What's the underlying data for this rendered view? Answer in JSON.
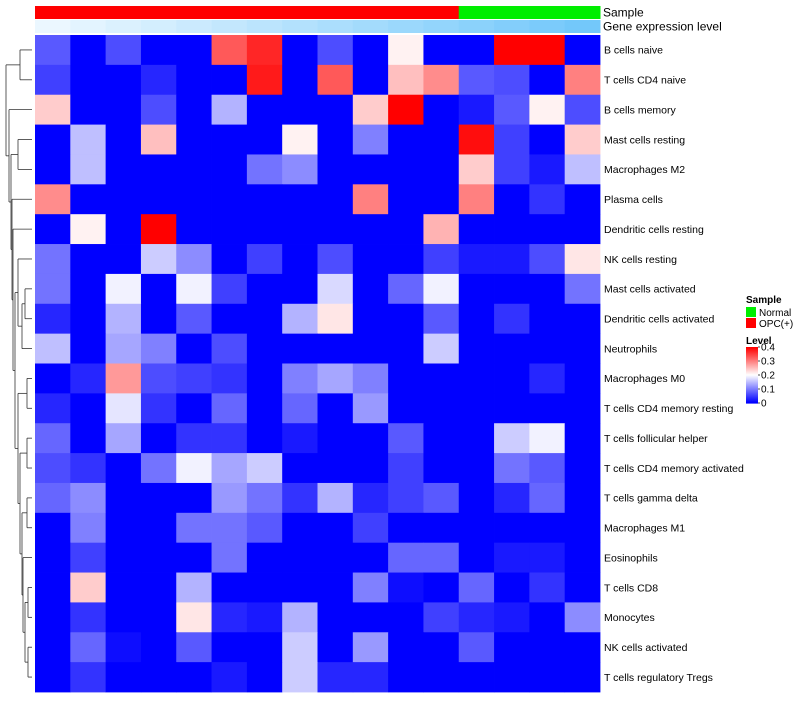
{
  "colors": {
    "normal": "#00ee00",
    "opc": "#ff0000",
    "scale_low": "#0000ff",
    "scale_mid": "#ffffff",
    "scale_high": "#ff0000"
  },
  "chart_data": {
    "type": "heatmap",
    "title": "",
    "value_range": [
      0,
      0.4
    ],
    "rows": [
      "B cells naive",
      "T cells CD4 naive",
      "B cells memory",
      "Mast cells resting",
      "Macrophages M2",
      "Plasma cells",
      "Dendritic cells resting",
      "NK cells resting",
      "Mast cells activated",
      "Dendritic cells activated",
      "Neutrophils",
      "Macrophages M0",
      "T cells CD4 memory resting",
      "T cells follicular helper",
      "T cells CD4 memory activated",
      "T cells gamma delta",
      "Macrophages M1",
      "Eosinophils",
      "T cells CD8",
      "Monocytes",
      "NK cells activated",
      "T cells regulatory  Tregs"
    ],
    "column_annotations": {
      "sample_label": "Sample",
      "expression_label": "Gene expression level",
      "sample_groups": [
        "OPC(+)",
        "OPC(+)",
        "OPC(+)",
        "OPC(+)",
        "OPC(+)",
        "OPC(+)",
        "OPC(+)",
        "OPC(+)",
        "OPC(+)",
        "OPC(+)",
        "OPC(+)",
        "OPC(+)",
        "Normal",
        "Normal",
        "Normal",
        "Normal"
      ],
      "expression_level": [
        0.02,
        0.08,
        0.14,
        0.2,
        0.26,
        0.32,
        0.38,
        0.44,
        0.5,
        0.56,
        0.62,
        0.68,
        0.74,
        0.8,
        0.86,
        0.92
      ]
    },
    "values": [
      [
        0.07,
        0,
        0.06,
        0,
        0,
        0.33,
        0.37,
        0,
        0.06,
        0,
        0.21,
        0,
        0,
        0.4,
        0.4,
        0
      ],
      [
        0.05,
        0,
        0,
        0.03,
        0,
        0,
        0.38,
        0,
        0.33,
        0,
        0.25,
        0.29,
        0.07,
        0.06,
        0,
        0.3
      ],
      [
        0.24,
        0,
        0,
        0.06,
        0,
        0.14,
        0,
        0,
        0,
        0.24,
        0.4,
        0,
        0.02,
        0.07,
        0.21,
        0.06
      ],
      [
        0,
        0.15,
        0,
        0.25,
        0,
        0,
        0,
        0.21,
        0,
        0.1,
        0,
        0,
        0.39,
        0.05,
        0,
        0.24
      ],
      [
        0,
        0.15,
        0,
        0,
        0,
        0,
        0.09,
        0.11,
        0,
        0,
        0,
        0,
        0.24,
        0.05,
        0.02,
        0.15
      ],
      [
        0.29,
        0,
        0,
        0,
        0,
        0,
        0,
        0,
        0,
        0.3,
        0,
        0,
        0.3,
        0,
        0.04,
        0
      ],
      [
        0,
        0.21,
        0,
        0.4,
        0,
        0,
        0,
        0,
        0,
        0,
        0,
        0.26,
        0,
        0,
        0,
        0
      ],
      [
        0.09,
        0,
        0,
        0.16,
        0.11,
        0,
        0.05,
        0,
        0.06,
        0,
        0,
        0.05,
        0.02,
        0.02,
        0.06,
        0.22
      ],
      [
        0.09,
        0,
        0.19,
        0,
        0.19,
        0.05,
        0,
        0,
        0.17,
        0,
        0.08,
        0.19,
        0,
        0,
        0,
        0.09
      ],
      [
        0.03,
        0,
        0.14,
        0,
        0.07,
        0,
        0,
        0.14,
        0.22,
        0,
        0,
        0.07,
        0,
        0.04,
        0,
        0
      ],
      [
        0.15,
        0,
        0.13,
        0.1,
        0,
        0.06,
        0,
        0,
        0,
        0,
        0,
        0.16,
        0,
        0,
        0,
        0
      ],
      [
        0,
        0.03,
        0.28,
        0.06,
        0.05,
        0.04,
        0,
        0.1,
        0.13,
        0.1,
        0,
        0,
        0,
        0,
        0.03,
        0
      ],
      [
        0.03,
        0,
        0.18,
        0.04,
        0,
        0.08,
        0,
        0.08,
        0,
        0.12,
        0,
        0,
        0,
        0,
        0,
        0
      ],
      [
        0.08,
        0,
        0.13,
        0,
        0.04,
        0.04,
        0,
        0.02,
        0,
        0,
        0.07,
        0,
        0,
        0.16,
        0.19,
        0
      ],
      [
        0.06,
        0.04,
        0,
        0.09,
        0.19,
        0.13,
        0.16,
        0,
        0,
        0,
        0.05,
        0,
        0,
        0.09,
        0.07,
        0
      ],
      [
        0.08,
        0.11,
        0,
        0,
        0,
        0.12,
        0.09,
        0.04,
        0.14,
        0.03,
        0.05,
        0.07,
        0,
        0.03,
        0.08,
        0
      ],
      [
        0,
        0.1,
        0,
        0,
        0.09,
        0.09,
        0.07,
        0,
        0,
        0.05,
        0,
        0,
        0,
        0,
        0,
        0
      ],
      [
        0,
        0.05,
        0,
        0,
        0,
        0.09,
        0,
        0,
        0,
        0,
        0.08,
        0.08,
        0,
        0.02,
        0.02,
        0
      ],
      [
        0,
        0.24,
        0,
        0,
        0.14,
        0,
        0,
        0,
        0,
        0.1,
        0.01,
        0,
        0.08,
        0,
        0.04,
        0
      ],
      [
        0,
        0.04,
        0,
        0,
        0.22,
        0.03,
        0.02,
        0.14,
        0,
        0,
        0,
        0.05,
        0.03,
        0.02,
        0,
        0.11
      ],
      [
        0,
        0.08,
        0.01,
        0,
        0.07,
        0,
        0,
        0.16,
        0,
        0.12,
        0,
        0,
        0.07,
        0,
        0,
        0
      ],
      [
        0,
        0.04,
        0,
        0,
        0,
        0.02,
        0,
        0.16,
        0.03,
        0.03,
        0,
        0,
        0,
        0,
        0,
        0
      ]
    ],
    "legend": {
      "sample_title": "Sample",
      "sample_entries": [
        "Normal",
        "OPC(+)"
      ],
      "level_title": "Level",
      "level_ticks": [
        "0.4",
        "0.3",
        "0.2",
        "0.1",
        "0"
      ],
      "level_values": [
        0.4,
        0.3,
        0.2,
        0.1,
        0
      ]
    },
    "dendrogram": "row clustering tree on left"
  }
}
